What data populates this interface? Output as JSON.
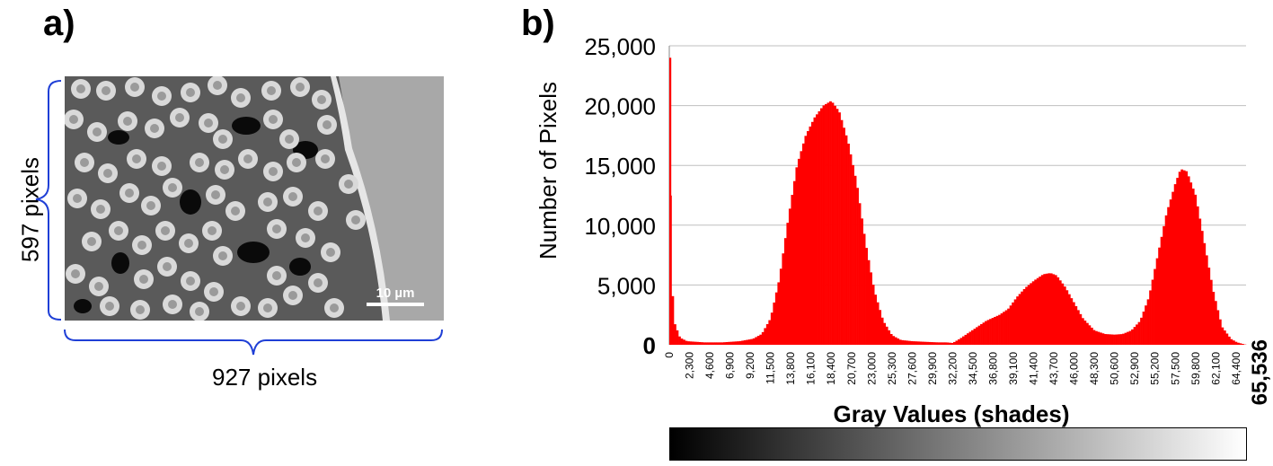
{
  "panel_a": {
    "label": "a)",
    "height_label": "597 pixels",
    "width_label": "927 pixels",
    "scale_bar": "10 µm"
  },
  "panel_b": {
    "label": "b)"
  },
  "colors": {
    "bars": "#ff0000",
    "grid": "#bfbfbf",
    "brace": "#1f3fd6"
  },
  "chart_data": {
    "type": "area",
    "title": "",
    "xlabel": "Gray Values (shades)",
    "ylabel": "Number of Pixels",
    "xlim": [
      0,
      65536
    ],
    "ylim": [
      0,
      25000
    ],
    "grid": true,
    "y_ticks": [
      "0",
      "5,000",
      "10,000",
      "15,000",
      "20,000",
      "25,000"
    ],
    "x_ticks": [
      "0",
      "2,300",
      "4,600",
      "6,900",
      "9,200",
      "11,500",
      "13,800",
      "16,100",
      "18,400",
      "20,700",
      "23,000",
      "25,300",
      "27,600",
      "29,900",
      "32,200",
      "34,500",
      "36,800",
      "39,100",
      "41,400",
      "43,700",
      "46,000",
      "48,300",
      "50,600",
      "52,900",
      "55,200",
      "57,500",
      "59,800",
      "62,100",
      "64,400"
    ],
    "x_max_label": "65,536",
    "colorbar": "black to white",
    "series": [
      {
        "x": [
          0,
          200,
          600,
          1200,
          2000,
          4000,
          6000,
          8000,
          9500,
          10500,
          11500,
          12500,
          13500,
          14500,
          15500,
          16500,
          17500,
          18400,
          19300,
          20300,
          21300,
          22300,
          23300,
          24300,
          25300,
          26300,
          27600,
          29000,
          30500,
          31500,
          32200,
          33000,
          34000,
          35000,
          36000,
          37500,
          38500,
          39500,
          40500,
          41500,
          42500,
          43300,
          44000,
          45000,
          46000,
          47000,
          48300,
          49500,
          50600,
          51500,
          52500,
          53500,
          54500,
          55500,
          56500,
          57500,
          58100,
          58800,
          59800,
          60800,
          61800,
          62800,
          63800,
          64500,
          65536
        ],
        "values": [
          24000,
          6000,
          1800,
          600,
          300,
          200,
          200,
          300,
          500,
          900,
          2200,
          5500,
          10500,
          15000,
          17500,
          19000,
          20000,
          20400,
          19500,
          17000,
          13500,
          8500,
          4500,
          2000,
          800,
          400,
          300,
          250,
          200,
          200,
          150,
          500,
          1000,
          1500,
          2000,
          2500,
          3000,
          4000,
          4800,
          5400,
          5900,
          6000,
          5800,
          4800,
          3500,
          2200,
          1200,
          900,
          850,
          900,
          1200,
          2000,
          4000,
          7500,
          11000,
          13500,
          14700,
          14500,
          12500,
          8500,
          4500,
          1500,
          500,
          200,
          0
        ]
      }
    ]
  }
}
